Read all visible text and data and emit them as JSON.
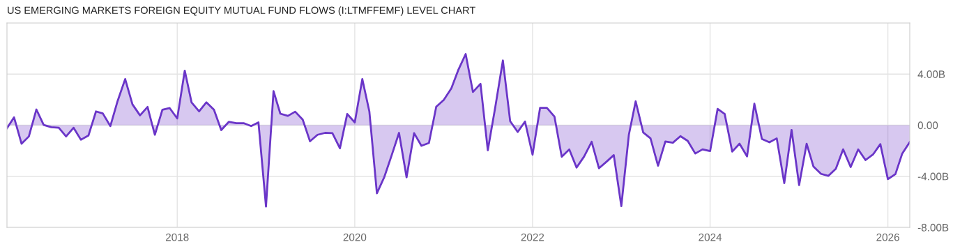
{
  "chart_data": {
    "type": "area",
    "title": "US EMERGING MARKETS FOREIGN EQUITY MUTUAL FUND FLOWS (I:LTMFFEMF) LEVEL CHART",
    "x": [
      "2016-02",
      "2016-03",
      "2016-04",
      "2016-05",
      "2016-06",
      "2016-07",
      "2016-08",
      "2016-09",
      "2016-10",
      "2016-11",
      "2016-12",
      "2017-01",
      "2017-02",
      "2017-03",
      "2017-04",
      "2017-05",
      "2017-06",
      "2017-07",
      "2017-08",
      "2017-09",
      "2017-10",
      "2017-11",
      "2017-12",
      "2018-01",
      "2018-02",
      "2018-03",
      "2018-04",
      "2018-05",
      "2018-06",
      "2018-07",
      "2018-08",
      "2018-09",
      "2018-10",
      "2018-11",
      "2018-12",
      "2019-01",
      "2019-02",
      "2019-03",
      "2019-04",
      "2019-05",
      "2019-06",
      "2019-07",
      "2019-08",
      "2019-09",
      "2019-10",
      "2019-11",
      "2019-12",
      "2020-01",
      "2020-02",
      "2020-03",
      "2020-04",
      "2020-05",
      "2020-06",
      "2020-07",
      "2020-08",
      "2020-09",
      "2020-10",
      "2020-11",
      "2020-12",
      "2021-01",
      "2021-02",
      "2021-03",
      "2021-04",
      "2021-05",
      "2021-06",
      "2021-07",
      "2021-08",
      "2021-09",
      "2021-10",
      "2021-11",
      "2021-12",
      "2022-01",
      "2022-02",
      "2022-03",
      "2022-04",
      "2022-05",
      "2022-06",
      "2022-07",
      "2022-08",
      "2022-09",
      "2022-10",
      "2022-11",
      "2022-12",
      "2023-01",
      "2023-02",
      "2023-03",
      "2023-04",
      "2023-05",
      "2023-06",
      "2023-07",
      "2023-08",
      "2023-09",
      "2023-10",
      "2023-11",
      "2023-12",
      "2024-01",
      "2024-02",
      "2024-03",
      "2024-04",
      "2024-05",
      "2024-06",
      "2024-07",
      "2024-08",
      "2024-09",
      "2024-10",
      "2024-11",
      "2024-12",
      "2025-01",
      "2025-02",
      "2025-03",
      "2025-04",
      "2025-05",
      "2025-06",
      "2025-07",
      "2025-08",
      "2025-09",
      "2025-10",
      "2025-11",
      "2025-12",
      "2026-01",
      "2026-02",
      "2026-03",
      "2026-04"
    ],
    "series": [
      {
        "color": "#6a35c8",
        "values": [
          -0.24,
          0.62,
          -1.45,
          -0.88,
          1.23,
          0.02,
          -0.16,
          -0.2,
          -0.88,
          -0.2,
          -1.14,
          -0.81,
          1.08,
          0.92,
          -0.07,
          1.9,
          3.61,
          1.63,
          0.77,
          1.43,
          -0.75,
          1.21,
          1.34,
          0.53,
          4.27,
          1.78,
          1.08,
          1.79,
          1.21,
          -0.38,
          0.26,
          0.16,
          0.16,
          -0.07,
          0.22,
          -6.37,
          2.67,
          0.9,
          0.73,
          1.06,
          0.44,
          -1.26,
          -0.75,
          -0.6,
          -0.62,
          -1.81,
          0.88,
          0.22,
          3.61,
          1.08,
          -5.33,
          -4.08,
          -2.34,
          -0.6,
          -4.08,
          -0.62,
          -1.61,
          -1.39,
          1.45,
          1.98,
          2.88,
          4.29,
          5.57,
          2.6,
          3.24,
          -1.96,
          1.45,
          5.07,
          0.31,
          -0.53,
          0.29,
          -2.31,
          1.36,
          1.36,
          0.68,
          -2.47,
          -1.9,
          -3.32,
          -2.45,
          -1.3,
          -3.37,
          -2.86,
          -2.34,
          -6.34,
          -0.75,
          1.87,
          -0.57,
          -1.03,
          -3.17,
          -1.28,
          -1.37,
          -0.86,
          -1.23,
          -2.22,
          -1.89,
          -2.03,
          1.28,
          0.88,
          -2.07,
          -1.45,
          -2.44,
          1.68,
          -1.08,
          -1.34,
          -1.03,
          -4.54,
          -0.37,
          -4.69,
          -1.45,
          -3.24,
          -3.81,
          -3.97,
          -3.41,
          -1.89,
          -3.28,
          -1.9,
          -2.73,
          -2.29,
          -1.48,
          -4.23,
          -3.83,
          -2.22,
          -1.32
        ]
      }
    ],
    "xlim": [
      "2016-02",
      "2026-04"
    ],
    "xticks": [
      "2018",
      "2020",
      "2022",
      "2024",
      "2026"
    ],
    "ylim": [
      -8,
      8
    ],
    "yticks": [
      {
        "value": -8,
        "label": "-8.00B"
      },
      {
        "value": -4,
        "label": "-4.00B"
      },
      {
        "value": 0,
        "label": "0.00"
      },
      {
        "value": 4,
        "label": "4.00B"
      }
    ],
    "grid": true
  }
}
